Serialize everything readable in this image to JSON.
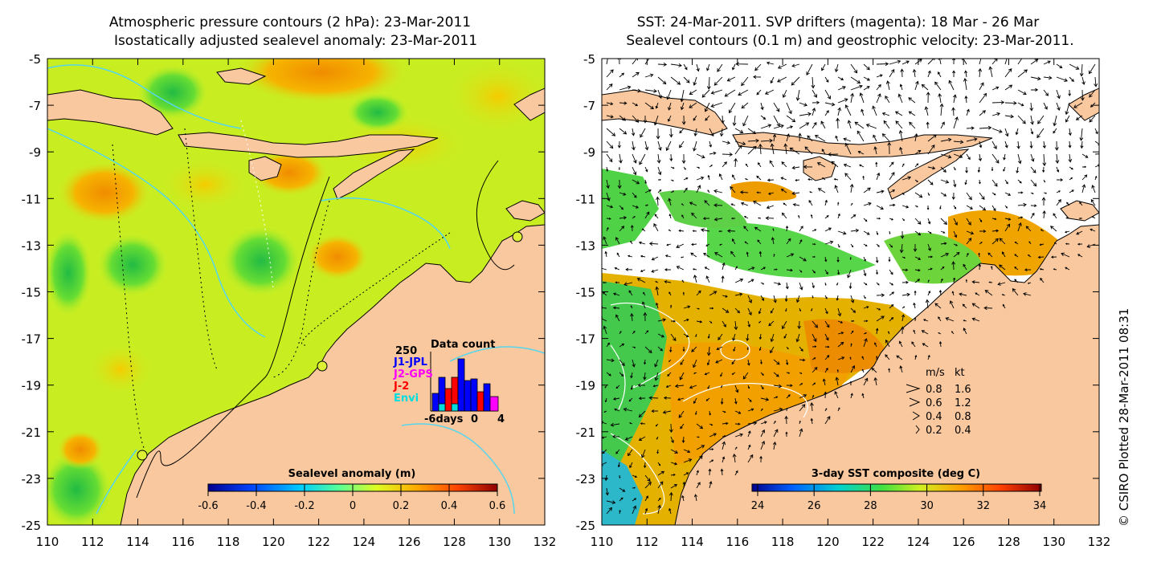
{
  "left_panel": {
    "title_line1": "Atmospheric pressure contours (2 hPa): 23-Mar-2011",
    "title_line2": "Isostatically adjusted sealevel anomaly: 23-Mar-2011",
    "x_ticks": [
      "110",
      "112",
      "114",
      "116",
      "118",
      "120",
      "122",
      "124",
      "126",
      "128",
      "130",
      "132"
    ],
    "y_ticks": [
      "-5",
      "-7",
      "-9",
      "-11",
      "-13",
      "-15",
      "-17",
      "-19",
      "-21",
      "-23",
      "-25"
    ],
    "colorbar_label": "Sealevel anomaly (m)",
    "colorbar_ticks": [
      "-0.6",
      "-0.4",
      "-0.2",
      "0",
      "0.2",
      "0.4",
      "0.6"
    ],
    "colorbar_colors": [
      "#00008f",
      "#0044ff",
      "#00ccff",
      "#55ff99",
      "#ddff22",
      "#ffaa00",
      "#ff4400",
      "#8f0000"
    ],
    "inset": {
      "title": "Data count",
      "y_max_label": "250",
      "x_labels": [
        "-6days",
        "0",
        "4"
      ],
      "legend": [
        {
          "label": "J1-JPL",
          "color": "#0000ff"
        },
        {
          "label": "J2-GPS",
          "color": "#ff00ff"
        },
        {
          "label": "J-2",
          "color": "#ff0000"
        },
        {
          "label": "Envi",
          "color": "#00dddd"
        }
      ]
    }
  },
  "right_panel": {
    "title_line1": "SST: 24-Mar-2011. SVP drifters (magenta): 18 Mar - 26 Mar",
    "title_line2": "Sealevel contours (0.1 m) and geostrophic velocity: 23-Mar-2011.",
    "x_ticks": [
      "110",
      "112",
      "114",
      "116",
      "118",
      "120",
      "122",
      "124",
      "126",
      "128",
      "130",
      "132"
    ],
    "y_ticks": [
      "-5",
      "-7",
      "-9",
      "-11",
      "-13",
      "-15",
      "-17",
      "-19",
      "-21",
      "-23",
      "-25"
    ],
    "colorbar_label": "3-day SST composite (deg C)",
    "colorbar_ticks": [
      "24",
      "26",
      "28",
      "30",
      "32",
      "34"
    ],
    "colorbar_colors": [
      "#00008f",
      "#0060ff",
      "#00d0d0",
      "#40e040",
      "#d0f020",
      "#ffa000",
      "#ff4000",
      "#8f0000"
    ],
    "speed_legend": {
      "header_ms": "m/s",
      "header_kt": "kt",
      "rows": [
        {
          "ms": "0.8",
          "kt": "1.6"
        },
        {
          "ms": "0.6",
          "kt": "1.2"
        },
        {
          "ms": "0.4",
          "kt": "0.8"
        },
        {
          "ms": "0.2",
          "kt": "0.4"
        }
      ]
    }
  },
  "credit": "© CSIRO Plotted 28-Mar-2011 08:31",
  "colors": {
    "land": "#f9c89e",
    "ocean_left": "#c8ee22",
    "cyan": "#55d6ee"
  }
}
